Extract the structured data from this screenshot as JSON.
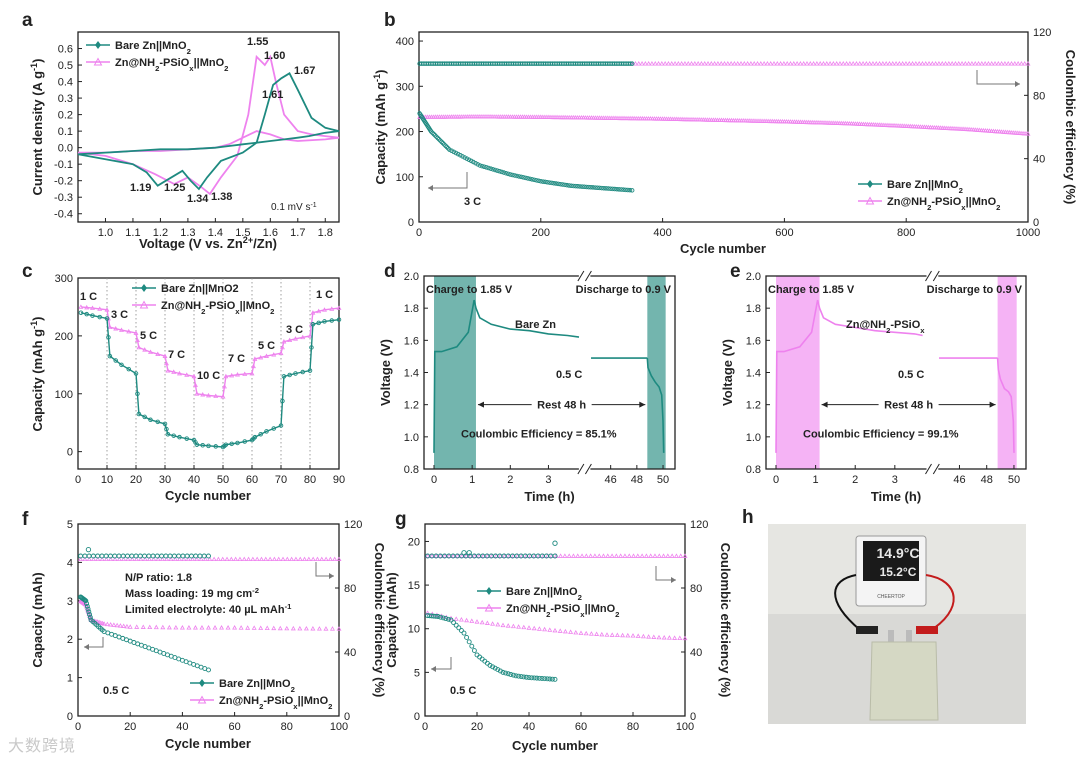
{
  "colors": {
    "teal": "#1e8a80",
    "pink": "#ee82ee",
    "band_teal": "#5aa8a0",
    "band_pink": "#f3a6f3",
    "grey": "#777777"
  },
  "watermark": "大数跨境",
  "panel_labels": [
    "a",
    "b",
    "c",
    "d",
    "e",
    "f",
    "g",
    "h"
  ],
  "chart_data": [
    {
      "id": "a",
      "type": "line",
      "title": "",
      "xlabel": "Voltage (V vs. Zn2+/Zn)",
      "ylabel": "Current density (A g-1)",
      "xlim": [
        0.9,
        1.85
      ],
      "ylim": [
        -0.45,
        0.7
      ],
      "xticks": [
        "1.0",
        "1.1",
        "1.2",
        "1.3",
        "1.4",
        "1.5",
        "1.6",
        "1.7",
        "1.8"
      ],
      "yticks": [
        "-0.4",
        "-0.3",
        "-0.2",
        "-0.1",
        "0.0",
        "0.1",
        "0.2",
        "0.3",
        "0.4",
        "0.5",
        "0.6"
      ],
      "legend": [
        "Bare Zn||MnO2",
        "Zn@NH2-PSiOx||MnO2"
      ],
      "series": [
        {
          "name": "Bare Zn||MnO2",
          "x": [
            0.9,
            1.0,
            1.1,
            1.15,
            1.19,
            1.22,
            1.28,
            1.31,
            1.34,
            1.37,
            1.42,
            1.5,
            1.55,
            1.58,
            1.61,
            1.64,
            1.67,
            1.7,
            1.75,
            1.8,
            1.85,
            1.8,
            1.74,
            1.7,
            1.65,
            1.6,
            1.55,
            1.5,
            1.45,
            1.4,
            1.3,
            1.2,
            1.1,
            1.0,
            0.9
          ],
          "y": [
            -0.04,
            -0.07,
            -0.1,
            -0.15,
            -0.23,
            -0.2,
            -0.14,
            -0.2,
            -0.25,
            -0.18,
            -0.08,
            -0.03,
            0.03,
            0.2,
            0.38,
            0.42,
            0.45,
            0.35,
            0.18,
            0.12,
            0.1,
            0.09,
            0.07,
            0.06,
            0.05,
            0.04,
            0.03,
            0.02,
            0.01,
            0.0,
            -0.01,
            -0.01,
            -0.02,
            -0.03,
            -0.04
          ]
        },
        {
          "name": "Zn@NH2-PSiOx||MnO2",
          "x": [
            0.9,
            1.0,
            1.1,
            1.18,
            1.25,
            1.3,
            1.35,
            1.38,
            1.42,
            1.48,
            1.52,
            1.55,
            1.58,
            1.6,
            1.62,
            1.65,
            1.7,
            1.75,
            1.8,
            1.85,
            1.8,
            1.7,
            1.65,
            1.6,
            1.55,
            1.5,
            1.45,
            1.4,
            1.3,
            1.2,
            1.1,
            1.0,
            0.9
          ],
          "y": [
            -0.03,
            -0.05,
            -0.1,
            -0.16,
            -0.22,
            -0.18,
            -0.24,
            -0.28,
            -0.18,
            -0.05,
            0.2,
            0.55,
            0.5,
            0.55,
            0.4,
            0.2,
            0.1,
            0.08,
            0.07,
            0.06,
            0.05,
            0.04,
            0.05,
            0.08,
            0.1,
            0.06,
            0.02,
            0.0,
            -0.01,
            -0.02,
            -0.02,
            -0.03,
            -0.03
          ]
        }
      ],
      "annotations": [
        "1.55",
        "1.60",
        "1.67",
        "1.61",
        "1.19",
        "1.25",
        "1.34",
        "1.38",
        "0.1 mV s-1"
      ]
    },
    {
      "id": "b",
      "type": "scatter",
      "xlabel": "Cycle number",
      "ylabel": "Capacity (mAh g-1)",
      "y2label": "Coulombic efficiency (%)",
      "xlim": [
        0,
        1000
      ],
      "ylim": [
        0,
        420
      ],
      "y2lim": [
        0,
        120
      ],
      "xticks": [
        "0",
        "200",
        "400",
        "600",
        "800",
        "1000"
      ],
      "yticks": [
        "0",
        "100",
        "200",
        "300",
        "400"
      ],
      "y2ticks": [
        "0",
        "40",
        "80",
        "120"
      ],
      "legend": [
        "Bare Zn||MnO2",
        "Zn@NH2-PSiOx||MnO2"
      ],
      "series": [
        {
          "name": "Bare Zn capacity",
          "x": [
            1,
            20,
            50,
            100,
            150,
            200,
            250,
            300,
            350
          ],
          "y": [
            240,
            200,
            160,
            125,
            105,
            90,
            80,
            75,
            70
          ]
        },
        {
          "name": "Zn@NH2-PSiOx capacity",
          "x": [
            1,
            100,
            200,
            300,
            400,
            500,
            600,
            700,
            800,
            900,
            1000
          ],
          "y": [
            232,
            233,
            232,
            230,
            228,
            225,
            222,
            218,
            212,
            205,
            195
          ]
        },
        {
          "name": "Bare Zn CE",
          "x": [
            1,
            350
          ],
          "y": [
            100,
            100
          ]
        },
        {
          "name": "Zn@NH2-PSiOx CE",
          "x": [
            350,
            1000
          ],
          "y": [
            100,
            100
          ]
        }
      ],
      "annotations": [
        "3 C"
      ]
    },
    {
      "id": "c",
      "type": "scatter",
      "xlabel": "Cycle number",
      "ylabel": "Capacity (mAh g-1)",
      "xlim": [
        0,
        90
      ],
      "ylim": [
        -30,
        300
      ],
      "xticks": [
        "0",
        "10",
        "20",
        "30",
        "40",
        "50",
        "60",
        "70",
        "80",
        "90"
      ],
      "yticks": [
        "0",
        "100",
        "200",
        "300"
      ],
      "legend": [
        "Bare Zn||MnO2",
        "Zn@NH2-PSiOx||MnO2"
      ],
      "rate_labels": [
        "1 C",
        "3 C",
        "5 C",
        "7 C",
        "10 C",
        "7 C",
        "5 C",
        "3 C",
        "1 C"
      ],
      "series": [
        {
          "name": "Bare Zn||MnO2",
          "x": [
            1,
            5,
            10,
            11,
            15,
            20,
            21,
            25,
            30,
            31,
            35,
            40,
            41,
            45,
            50,
            51,
            55,
            60,
            61,
            65,
            70,
            71,
            75,
            80,
            81,
            85,
            90
          ],
          "y": [
            240,
            235,
            230,
            165,
            150,
            135,
            65,
            55,
            48,
            30,
            25,
            20,
            12,
            10,
            8,
            12,
            15,
            20,
            25,
            35,
            45,
            130,
            135,
            140,
            220,
            225,
            228
          ]
        },
        {
          "name": "Zn@NH2-PSiOx||MnO2",
          "x": [
            1,
            5,
            10,
            11,
            15,
            20,
            21,
            25,
            30,
            31,
            35,
            40,
            41,
            45,
            50,
            51,
            55,
            60,
            61,
            65,
            70,
            71,
            75,
            80,
            81,
            85,
            90
          ],
          "y": [
            250,
            248,
            245,
            215,
            210,
            205,
            180,
            172,
            165,
            140,
            135,
            130,
            100,
            97,
            95,
            130,
            133,
            135,
            160,
            165,
            170,
            190,
            195,
            200,
            240,
            245,
            248
          ]
        }
      ]
    },
    {
      "id": "d",
      "type": "line",
      "xlabel": "Time (h)",
      "ylabel": "Voltage (V)",
      "ylim": [
        0.8,
        2.0
      ],
      "xticks": [
        "0",
        "1",
        "2",
        "3",
        "46",
        "48",
        "50"
      ],
      "yticks": [
        "0.8",
        "1.0",
        "1.2",
        "1.4",
        "1.6",
        "1.8",
        "2.0"
      ],
      "annotations": [
        "Charge to 1.85 V",
        "Discharge to 0.9 V",
        "Bare Zn",
        "0.5 C",
        "Rest 48 h",
        "Coulombic Efficiency = 85.1%"
      ],
      "series": [
        {
          "name": "Bare Zn",
          "x": [
            0,
            0.02,
            0.2,
            0.6,
            0.9,
            1.05,
            1.1,
            1.2,
            1.5,
            2.0,
            2.5,
            3.0,
            3.5,
            3.8
          ],
          "y": [
            0.9,
            1.53,
            1.53,
            1.56,
            1.65,
            1.85,
            1.8,
            1.74,
            1.7,
            1.67,
            1.66,
            1.64,
            1.63,
            1.62
          ]
        }
      ]
    },
    {
      "id": "e",
      "type": "line",
      "xlabel": "Time (h)",
      "ylabel": "Voltage (V)",
      "ylim": [
        0.8,
        2.0
      ],
      "xticks": [
        "0",
        "1",
        "2",
        "3",
        "46",
        "48",
        "50"
      ],
      "yticks": [
        "0.8",
        "1.0",
        "1.2",
        "1.4",
        "1.6",
        "1.8",
        "2.0"
      ],
      "annotations": [
        "Charge to 1.85 V",
        "Discharge to 0.9 V",
        "Zn@NH2-PSiOx",
        "0.5 C",
        "Rest 48 h",
        "Coulombic Efficiency = 99.1%"
      ],
      "series": [
        {
          "name": "Zn@NH2-PSiOx",
          "x": [
            0,
            0.02,
            0.2,
            0.6,
            0.9,
            1.05,
            1.1,
            1.2,
            1.5,
            2.0,
            2.5,
            3.0,
            3.5,
            3.7
          ],
          "y": [
            0.9,
            1.53,
            1.53,
            1.56,
            1.65,
            1.85,
            1.8,
            1.74,
            1.7,
            1.68,
            1.66,
            1.65,
            1.64,
            1.63
          ]
        }
      ]
    },
    {
      "id": "f",
      "type": "scatter",
      "xlabel": "Cycle number",
      "ylabel": "Capacity (mAh)",
      "y2label": "Coulombic efficiency (%)",
      "xlim": [
        0,
        100
      ],
      "ylim": [
        0,
        5
      ],
      "y2lim": [
        0,
        120
      ],
      "xticks": [
        "0",
        "20",
        "40",
        "60",
        "80",
        "100"
      ],
      "yticks": [
        "0",
        "1",
        "2",
        "3",
        "4",
        "5"
      ],
      "y2ticks": [
        "0",
        "40",
        "80",
        "120"
      ],
      "legend": [
        "Bare Zn||MnO2",
        "Zn@NH2-PSiOx||MnO2"
      ],
      "annotations": [
        "N/P ratio: 1.8",
        "Mass loading: 19 mg cm-2",
        "Limited electrolyte: 40 µL mAh-1",
        "0.5 C"
      ],
      "series": [
        {
          "name": "Bare Zn capacity",
          "x": [
            1,
            3,
            5,
            10,
            20,
            30,
            40,
            50
          ],
          "y": [
            3.1,
            3.0,
            2.5,
            2.2,
            1.95,
            1.7,
            1.45,
            1.2
          ]
        },
        {
          "name": "Zn@NH2-PSiOx capacity",
          "x": [
            1,
            3,
            5,
            10,
            20,
            40,
            60,
            80,
            100
          ],
          "y": [
            3.0,
            2.9,
            2.5,
            2.4,
            2.32,
            2.3,
            2.3,
            2.28,
            2.27
          ]
        },
        {
          "name": "Bare Zn CE",
          "x": [
            1,
            50
          ],
          "y": [
            100,
            100
          ]
        },
        {
          "name": "Zn@NH2-PSiOx CE",
          "x": [
            1,
            100
          ],
          "y": [
            98,
            98
          ]
        }
      ]
    },
    {
      "id": "g",
      "type": "scatter",
      "xlabel": "Cycle number",
      "ylabel": "Capacity (mAh)",
      "y2label": "Coulombic efficiency (%)",
      "xlim": [
        0,
        100
      ],
      "ylim": [
        0,
        22
      ],
      "y2lim": [
        0,
        120
      ],
      "xticks": [
        "0",
        "20",
        "40",
        "60",
        "80",
        "100"
      ],
      "yticks": [
        "0",
        "5",
        "10",
        "15",
        "20"
      ],
      "y2ticks": [
        "0",
        "40",
        "80",
        "120"
      ],
      "legend": [
        "Bare Zn||MnO2",
        "Zn@NH2-PSiOx||MnO2"
      ],
      "annotations": [
        "0.5 C"
      ],
      "series": [
        {
          "name": "Bare Zn capacity",
          "x": [
            1,
            5,
            10,
            15,
            20,
            25,
            30,
            35,
            40,
            45,
            50
          ],
          "y": [
            11.5,
            11.4,
            11.0,
            9.5,
            7.0,
            5.8,
            5.0,
            4.6,
            4.4,
            4.3,
            4.2
          ]
        },
        {
          "name": "Zn@NH2-PSiOx capacity",
          "x": [
            1,
            10,
            20,
            30,
            40,
            50,
            60,
            70,
            80,
            90,
            100
          ],
          "y": [
            11.8,
            11.2,
            10.8,
            10.4,
            10.1,
            9.8,
            9.5,
            9.3,
            9.2,
            9.0,
            8.9
          ]
        },
        {
          "name": "Bare Zn CE",
          "x": [
            1,
            50
          ],
          "y": [
            100,
            100
          ]
        },
        {
          "name": "Zn@NH2-PSiOx CE",
          "x": [
            1,
            100
          ],
          "y": [
            100,
            100
          ]
        }
      ]
    }
  ],
  "photo_h": {
    "display_top": "14.9°C",
    "display_bottom": "15.2°C",
    "brand": "CHEERTOP"
  }
}
